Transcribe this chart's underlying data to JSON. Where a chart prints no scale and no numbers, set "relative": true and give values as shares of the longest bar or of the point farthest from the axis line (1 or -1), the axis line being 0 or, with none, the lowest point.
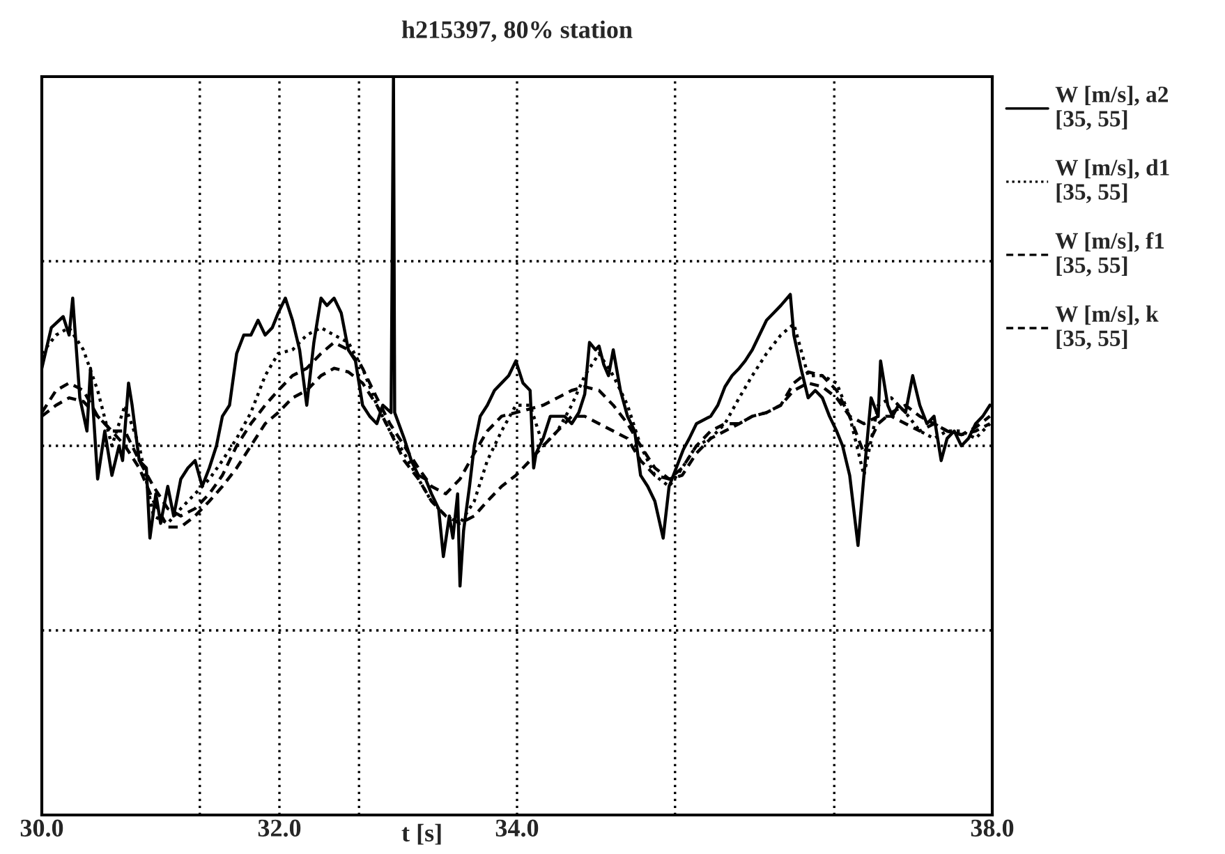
{
  "chart_data": {
    "type": "line",
    "title": "h215397, 80% station",
    "xlabel": "t [s]",
    "xlim": [
      30,
      38
    ],
    "relative": true,
    "xticks": [
      {
        "value": 30,
        "label": "30.0"
      },
      {
        "value": 31.33,
        "label": null
      },
      {
        "value": 32,
        "label": "32.0"
      },
      {
        "value": 32.67,
        "label": null
      },
      {
        "value": 34,
        "label": "34.0"
      },
      {
        "value": 35.33,
        "label": null
      },
      {
        "value": 36.67,
        "label": null
      },
      {
        "value": 38,
        "label": "38.0"
      }
    ],
    "grid": true,
    "legend": "right",
    "marker": "none",
    "tick_labels": "x",
    "series": [
      {
        "name": "W [m/s], a2\n[35, 55]",
        "color": "#000000",
        "line_style": "solid",
        "x": [
          30.0,
          30.08,
          30.18,
          30.23,
          30.26,
          30.32,
          30.38,
          30.41,
          30.47,
          30.53,
          30.59,
          30.65,
          30.68,
          30.73,
          30.76,
          30.82,
          30.88,
          30.91,
          30.96,
          31.0,
          31.06,
          31.11,
          31.17,
          31.23,
          31.29,
          31.35,
          31.41,
          31.47,
          31.52,
          31.58,
          31.64,
          31.7,
          31.76,
          31.82,
          31.88,
          31.94,
          31.99,
          32.05,
          32.11,
          32.17,
          32.23,
          32.29,
          32.35,
          32.4,
          32.46,
          32.52,
          32.58,
          32.64,
          32.7,
          32.76,
          32.82,
          32.87,
          32.94,
          32.96,
          32.97,
          33.05,
          33.11,
          33.17,
          33.23,
          33.28,
          33.34,
          33.38,
          33.43,
          33.46,
          33.5,
          33.52,
          33.55,
          33.6,
          33.64,
          33.69,
          33.75,
          33.81,
          33.87,
          33.93,
          33.99,
          34.05,
          34.11,
          34.14,
          34.16,
          34.22,
          34.28,
          34.34,
          34.4,
          34.46,
          34.52,
          34.57,
          34.61,
          34.66,
          34.69,
          34.73,
          34.77,
          34.81,
          34.87,
          34.93,
          34.99,
          35.04,
          35.1,
          35.16,
          35.23,
          35.28,
          35.34,
          35.4,
          35.45,
          35.51,
          35.63,
          35.69,
          35.75,
          35.81,
          35.87,
          35.92,
          35.98,
          36.04,
          36.1,
          36.16,
          36.22,
          36.3,
          36.33,
          36.39,
          36.45,
          36.51,
          36.57,
          36.63,
          36.69,
          36.74,
          36.8,
          36.87,
          36.92,
          36.98,
          37.04,
          37.06,
          37.12,
          37.16,
          37.21,
          37.27,
          37.33,
          37.39,
          37.45,
          37.51,
          37.57,
          37.62,
          37.68,
          37.74,
          37.8,
          37.86,
          37.92,
          37.98
        ],
        "values": [
          0.605,
          0.66,
          0.675,
          0.65,
          0.7,
          0.565,
          0.52,
          0.605,
          0.455,
          0.52,
          0.46,
          0.5,
          0.48,
          0.585,
          0.555,
          0.48,
          0.47,
          0.375,
          0.435,
          0.395,
          0.445,
          0.405,
          0.455,
          0.47,
          0.48,
          0.445,
          0.47,
          0.5,
          0.54,
          0.555,
          0.625,
          0.65,
          0.65,
          0.67,
          0.65,
          0.66,
          0.68,
          0.7,
          0.67,
          0.63,
          0.555,
          0.64,
          0.7,
          0.69,
          0.7,
          0.68,
          0.63,
          0.615,
          0.555,
          0.54,
          0.53,
          0.555,
          0.545,
          1,
          0.545,
          0.51,
          0.48,
          0.46,
          0.455,
          0.435,
          0.415,
          0.35,
          0.405,
          0.375,
          0.435,
          0.31,
          0.385,
          0.445,
          0.5,
          0.54,
          0.555,
          0.575,
          0.585,
          0.595,
          0.615,
          0.585,
          0.575,
          0.47,
          0.49,
          0.51,
          0.54,
          0.54,
          0.54,
          0.53,
          0.545,
          0.57,
          0.64,
          0.63,
          0.635,
          0.61,
          0.595,
          0.63,
          0.575,
          0.54,
          0.52,
          0.46,
          0.445,
          0.425,
          0.375,
          0.445,
          0.47,
          0.495,
          0.51,
          0.53,
          0.54,
          0.555,
          0.58,
          0.595,
          0.605,
          0.615,
          0.63,
          0.65,
          0.67,
          0.68,
          0.69,
          0.705,
          0.65,
          0.605,
          0.565,
          0.575,
          0.565,
          0.54,
          0.52,
          0.5,
          0.46,
          0.365,
          0.46,
          0.565,
          0.54,
          0.615,
          0.555,
          0.54,
          0.555,
          0.545,
          0.595,
          0.555,
          0.53,
          0.54,
          0.48,
          0.51,
          0.52,
          0.5,
          0.51,
          0.53,
          0.54,
          0.555
        ]
      },
      {
        "name": "W [m/s], d1\n[35, 55]",
        "color": "#000000",
        "line_style": "dotted",
        "x": [
          30.0,
          30.12,
          30.23,
          30.35,
          30.47,
          30.59,
          30.7,
          30.82,
          30.94,
          31.06,
          31.17,
          31.29,
          31.41,
          31.52,
          31.64,
          31.76,
          31.88,
          31.99,
          32.11,
          32.23,
          32.35,
          32.46,
          32.58,
          32.7,
          32.82,
          32.93,
          33.05,
          33.17,
          33.28,
          33.4,
          33.52,
          33.64,
          33.75,
          33.87,
          33.99,
          34.11,
          34.22,
          34.34,
          34.46,
          34.57,
          34.69,
          34.81,
          34.93,
          35.04,
          35.16,
          35.28,
          35.39,
          35.51,
          35.63,
          35.75,
          35.87,
          35.98,
          36.1,
          36.22,
          36.33,
          36.45,
          36.57,
          36.69,
          36.8,
          36.92,
          37.04,
          37.15,
          37.27,
          37.39,
          37.51,
          37.62,
          37.74,
          37.86,
          37.98
        ],
        "values": [
          0.625,
          0.65,
          0.66,
          0.63,
          0.575,
          0.5,
          0.555,
          0.5,
          0.405,
          0.395,
          0.415,
          0.435,
          0.455,
          0.48,
          0.51,
          0.545,
          0.595,
          0.625,
          0.63,
          0.65,
          0.66,
          0.65,
          0.64,
          0.605,
          0.555,
          0.52,
          0.49,
          0.455,
          0.425,
          0.405,
          0.395,
          0.425,
          0.48,
          0.52,
          0.555,
          0.555,
          0.5,
          0.52,
          0.555,
          0.595,
          0.625,
          0.595,
          0.555,
          0.5,
          0.46,
          0.445,
          0.47,
          0.5,
          0.51,
          0.53,
          0.565,
          0.595,
          0.625,
          0.65,
          0.665,
          0.595,
          0.595,
          0.585,
          0.54,
          0.46,
          0.555,
          0.565,
          0.545,
          0.52,
          0.51,
          0.52,
          0.52,
          0.51,
          0.53
        ]
      },
      {
        "name": "W [m/s], f1\n[35, 55]",
        "color": "#000000",
        "line_style": "dashed",
        "x": [
          30.0,
          30.12,
          30.23,
          30.35,
          30.47,
          30.59,
          30.7,
          30.82,
          30.94,
          31.06,
          31.17,
          31.29,
          31.41,
          31.52,
          31.64,
          31.76,
          31.88,
          31.99,
          32.11,
          32.23,
          32.35,
          32.46,
          32.58,
          32.7,
          32.82,
          32.93,
          33.05,
          33.17,
          33.28,
          33.4,
          33.52,
          33.64,
          33.75,
          33.87,
          33.99,
          34.11,
          34.22,
          34.34,
          34.46,
          34.57,
          34.69,
          34.81,
          34.93,
          35.04,
          35.16,
          35.28,
          35.39,
          35.51,
          35.63,
          35.75,
          35.87,
          35.98,
          36.1,
          36.22,
          36.33,
          36.45,
          36.57,
          36.69,
          36.8,
          36.92,
          37.04,
          37.15,
          37.27,
          37.39,
          37.51,
          37.62,
          37.74,
          37.86,
          37.98
        ],
        "values": [
          0.545,
          0.575,
          0.585,
          0.575,
          0.54,
          0.52,
          0.52,
          0.48,
          0.445,
          0.415,
          0.405,
          0.415,
          0.435,
          0.46,
          0.5,
          0.53,
          0.555,
          0.575,
          0.595,
          0.605,
          0.625,
          0.64,
          0.63,
          0.605,
          0.565,
          0.53,
          0.5,
          0.47,
          0.445,
          0.435,
          0.455,
          0.49,
          0.52,
          0.54,
          0.545,
          0.55,
          0.555,
          0.565,
          0.575,
          0.58,
          0.575,
          0.555,
          0.53,
          0.5,
          0.47,
          0.455,
          0.46,
          0.49,
          0.51,
          0.52,
          0.53,
          0.54,
          0.545,
          0.555,
          0.585,
          0.6,
          0.595,
          0.575,
          0.54,
          0.49,
          0.53,
          0.545,
          0.555,
          0.54,
          0.53,
          0.52,
          0.515,
          0.525,
          0.54
        ]
      },
      {
        "name": "W [m/s], k\n[35, 55]",
        "color": "#000000",
        "line_style": "dashed",
        "x": [
          30.0,
          30.12,
          30.23,
          30.35,
          30.47,
          30.59,
          30.7,
          30.82,
          30.94,
          31.06,
          31.17,
          31.29,
          31.41,
          31.52,
          31.64,
          31.76,
          31.88,
          31.99,
          32.11,
          32.23,
          32.35,
          32.46,
          32.58,
          32.7,
          32.82,
          32.93,
          33.05,
          33.17,
          33.28,
          33.4,
          33.52,
          33.64,
          33.75,
          33.87,
          33.99,
          34.11,
          34.22,
          34.34,
          34.46,
          34.57,
          34.69,
          34.81,
          34.93,
          35.04,
          35.16,
          35.28,
          35.39,
          35.51,
          35.63,
          35.75,
          35.87,
          35.98,
          36.1,
          36.22,
          36.33,
          36.45,
          36.57,
          36.69,
          36.8,
          36.92,
          37.04,
          37.15,
          37.27,
          37.39,
          37.51,
          37.62,
          37.74,
          37.86,
          37.98
        ],
        "values": [
          0.54,
          0.555,
          0.565,
          0.56,
          0.54,
          0.52,
          0.5,
          0.47,
          0.425,
          0.39,
          0.39,
          0.405,
          0.425,
          0.445,
          0.47,
          0.5,
          0.53,
          0.545,
          0.565,
          0.575,
          0.595,
          0.605,
          0.6,
          0.585,
          0.555,
          0.52,
          0.48,
          0.455,
          0.425,
          0.405,
          0.395,
          0.405,
          0.425,
          0.445,
          0.46,
          0.48,
          0.5,
          0.52,
          0.54,
          0.54,
          0.53,
          0.52,
          0.51,
          0.48,
          0.46,
          0.455,
          0.47,
          0.5,
          0.52,
          0.53,
          0.53,
          0.54,
          0.545,
          0.555,
          0.575,
          0.585,
          0.58,
          0.565,
          0.54,
          0.53,
          0.54,
          0.54,
          0.53,
          0.52,
          0.53,
          0.52,
          0.515,
          0.52,
          0.53
        ]
      }
    ]
  }
}
